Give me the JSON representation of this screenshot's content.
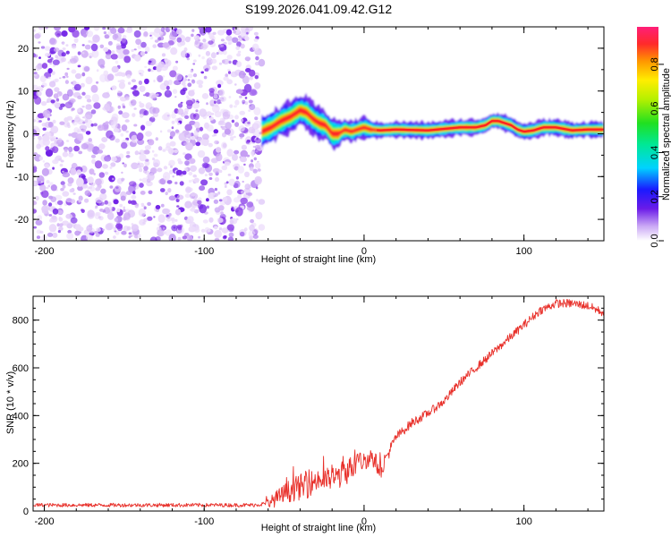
{
  "figure": {
    "title": "S199.2026.041.09.42.G12"
  },
  "chart_data": [
    {
      "type": "heatmap",
      "xlabel": "Height of straight line (km)",
      "ylabel": "Frequency (Hz)",
      "xlim": [
        -207,
        150
      ],
      "ylim": [
        -25,
        25
      ],
      "xticks": [
        -200,
        -100,
        0,
        100
      ],
      "yticks": [
        -20,
        -10,
        0,
        10,
        20
      ],
      "noise_region_x": [
        -207,
        -64
      ],
      "signal_ridge": {
        "x": [
          -64,
          -58,
          -52,
          -46,
          -40,
          -36,
          -32,
          -28,
          -24,
          -20,
          -16,
          -12,
          -8,
          -4,
          0,
          4,
          10,
          20,
          40,
          60,
          70,
          76,
          80,
          84,
          88,
          92,
          96,
          100,
          106,
          112,
          120,
          130,
          140,
          150
        ],
        "frequency": [
          0.5,
          1.5,
          3,
          4,
          5.5,
          5,
          3.5,
          2.5,
          2,
          0,
          0,
          1,
          0.5,
          1,
          1.5,
          1,
          0.8,
          1,
          0.8,
          1.5,
          1.5,
          2,
          3,
          3,
          2.5,
          2,
          1,
          0.5,
          0.8,
          1.5,
          1.5,
          0.8,
          1,
          1
        ]
      },
      "colorbar": {
        "label": "Normalized spectral amplitude",
        "ticks": [
          0.0,
          0.2,
          0.4,
          0.6,
          0.8
        ],
        "tick_labels": [
          "0.0",
          "0.2",
          "0.4",
          "0.6",
          "0.8"
        ],
        "range": [
          0,
          0.97
        ]
      },
      "grid": false
    },
    {
      "type": "line",
      "xlabel": "Height of straight line (km)",
      "ylabel": "SNR (10 * v/v)",
      "xlim": [
        -207,
        150
      ],
      "ylim": [
        0,
        900
      ],
      "xticks": [
        -200,
        -100,
        0,
        100
      ],
      "yticks": [
        0,
        200,
        400,
        600,
        800
      ],
      "series": [
        {
          "name": "SNR",
          "color": "#e8302a",
          "x": [
            -207,
            -150,
            -100,
            -70,
            -62,
            -55,
            -50,
            -45,
            -40,
            -35,
            -30,
            -25,
            -20,
            -15,
            -10,
            -5,
            0,
            5,
            10,
            20,
            30,
            40,
            50,
            60,
            70,
            80,
            90,
            100,
            110,
            120,
            130,
            140,
            150
          ],
          "values": [
            25,
            25,
            25,
            25,
            30,
            50,
            70,
            90,
            100,
            110,
            130,
            130,
            135,
            150,
            170,
            200,
            210,
            230,
            170,
            310,
            370,
            410,
            460,
            540,
            600,
            660,
            720,
            780,
            840,
            870,
            870,
            860,
            830
          ],
          "noise": [
            8,
            8,
            8,
            8,
            10,
            35,
            45,
            50,
            55,
            55,
            50,
            50,
            50,
            55,
            55,
            50,
            40,
            40,
            40,
            20,
            20,
            18,
            18,
            18,
            18,
            18,
            18,
            18,
            18,
            18,
            18,
            18,
            18
          ]
        }
      ],
      "grid": false
    }
  ]
}
